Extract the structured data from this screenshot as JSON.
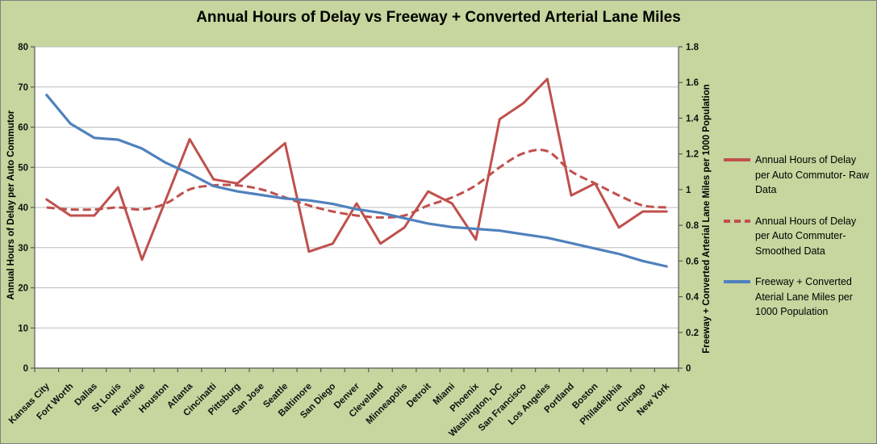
{
  "title": "Annual Hours of Delay vs Freeway + Converted Arterial Lane Miles",
  "left_axis": {
    "title": "Annual Hours of Delay per Auto Commutor",
    "min": 0,
    "max": 80,
    "ticks": [
      "80",
      "70",
      "60",
      "50",
      "40",
      "30",
      "20",
      "10",
      "0"
    ]
  },
  "right_axis": {
    "title": "Freeway + Converted Arterial Lane Miles per 1000 Population",
    "min": 0,
    "max": 1.8,
    "ticks": [
      "1.8",
      "1.6",
      "1.4",
      "1.2",
      "1",
      "0.8",
      "0.6",
      "0.4",
      "0.2",
      "0"
    ]
  },
  "legend": [
    {
      "label": "Annual Hours of Delay per Auto Commutor- Raw Data",
      "lines": [
        "Annual Hours of Delay",
        "per Auto Commutor- Raw",
        "Data"
      ],
      "style": "solid",
      "color": "#C0504D"
    },
    {
      "label": "Annual Hours of Delay per Auto Commuter- Smoothed Data",
      "lines": [
        "Annual Hours of Delay",
        "per Auto Commuter-",
        "Smoothed Data"
      ],
      "style": "dashed",
      "color": "#C0504D"
    },
    {
      "label": "Freeway + Converted Aterial Lane Miles per 1000 Population",
      "lines": [
        "Freeway + Converted",
        "Aterial Lane Miles per",
        "1000 Population"
      ],
      "style": "solid",
      "color": "#4F81BD"
    }
  ],
  "colors": {
    "background": "#C6D69E",
    "plot_bg": "#FFFFFF",
    "grid": "#BDBDBD",
    "axis": "#595959",
    "red": "#C0504D",
    "blue": "#4F81BD",
    "text": "#000000"
  },
  "chart_data": {
    "type": "line",
    "title": "Annual Hours of Delay vs Freeway + Converted Arterial Lane Miles",
    "xlabel": "",
    "ylabel_left": "Annual Hours of Delay per Auto Commutor",
    "ylabel_right": "Freeway + Converted Arterial Lane Miles per 1000 Population",
    "left_ylim": [
      0,
      80
    ],
    "right_ylim": [
      0,
      1.8
    ],
    "grid": true,
    "legend_position": "right",
    "categories": [
      "Kansas City",
      "Fort Worth",
      "Dallas",
      "St Louis",
      "Riverside",
      "Houston",
      "Atlanta",
      "Cincinatti",
      "Pittsburg",
      "San Jose",
      "Seattle",
      "Baltimore",
      "San Diego",
      "Denver",
      "Cleveland",
      "Minneapolis",
      "Detroit",
      "Miami",
      "Phoenix",
      "Washington, DC",
      "San Francisco",
      "Los Angeles",
      "Portland",
      "Boston",
      "Philadelphia",
      "Chicago",
      "New York"
    ],
    "series": [
      {
        "name": "Annual Hours of Delay per Auto Commutor- Raw Data",
        "axis": "left",
        "style": "solid",
        "smooth": false,
        "color": "#C0504D",
        "values": [
          42,
          38,
          38,
          45,
          27,
          42,
          57,
          47,
          46,
          51,
          56,
          29,
          31,
          41,
          31,
          35,
          44,
          41,
          32,
          62,
          66,
          72,
          43,
          46,
          35,
          39,
          39
        ]
      },
      {
        "name": "Annual Hours of Delay per Auto Commuter- Smoothed Data",
        "axis": "left",
        "style": "dashed",
        "smooth": true,
        "color": "#C0504D",
        "values": [
          40,
          39.5,
          39.5,
          40,
          39.5,
          41,
          44.5,
          45.5,
          45.5,
          44.5,
          42.5,
          40.5,
          39,
          38,
          37.5,
          38,
          40.5,
          42.5,
          45.5,
          50,
          53.5,
          54,
          49,
          46,
          43,
          40.5,
          40
        ]
      },
      {
        "name": "Freeway + Converted Aterial Lane Miles per 1000 Population",
        "axis": "right",
        "style": "solid",
        "smooth": false,
        "color": "#4F81BD",
        "values": [
          1.53,
          1.37,
          1.29,
          1.28,
          1.23,
          1.15,
          1.09,
          1.02,
          0.99,
          0.97,
          0.95,
          0.94,
          0.92,
          0.89,
          0.87,
          0.84,
          0.81,
          0.79,
          0.78,
          0.77,
          0.75,
          0.73,
          0.7,
          0.67,
          0.64,
          0.6,
          0.57
        ]
      }
    ]
  }
}
